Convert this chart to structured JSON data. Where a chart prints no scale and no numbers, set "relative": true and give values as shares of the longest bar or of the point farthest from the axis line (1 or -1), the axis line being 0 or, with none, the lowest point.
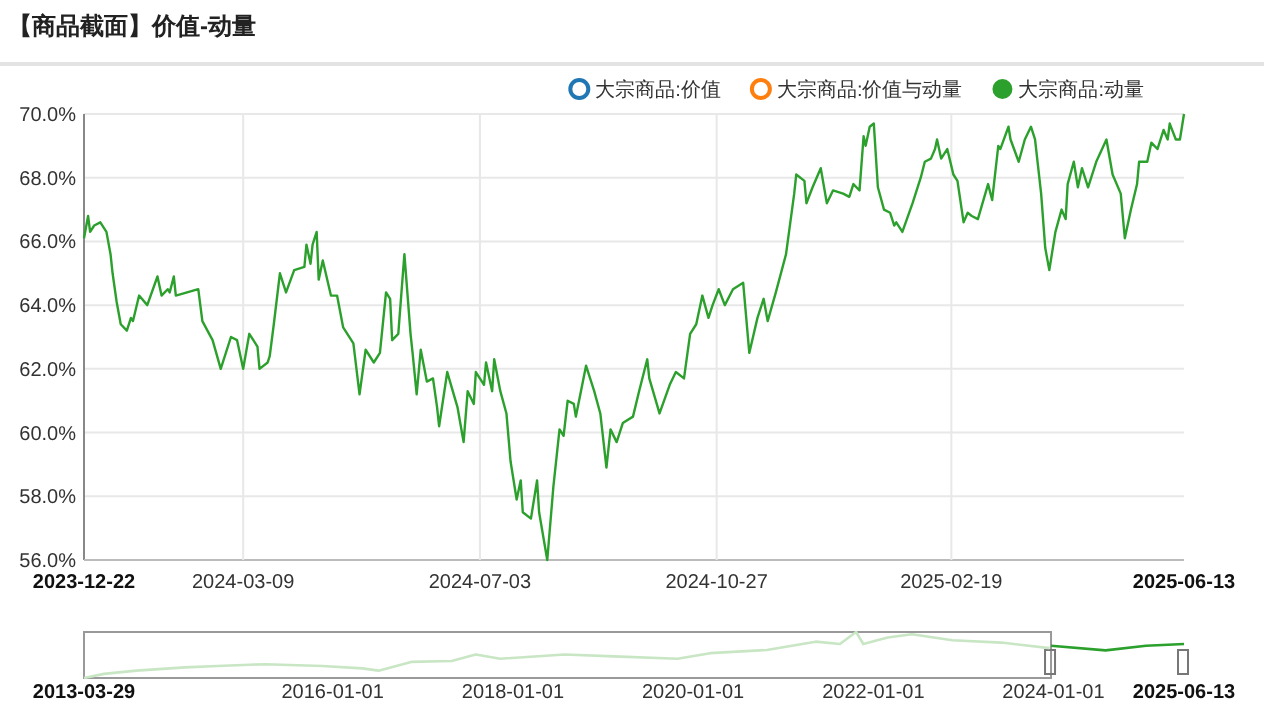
{
  "chart_data": [
    {
      "type": "line",
      "title": "【商品截面】价值-动量",
      "xlim": [
        "2023-12-22",
        "2025-06-13"
      ],
      "xticks": [
        {
          "value": "2023-12-22",
          "label": "2023-12-22"
        },
        {
          "value": "2024-03-09",
          "label": "2024-03-09"
        },
        {
          "value": "2024-07-03",
          "label": "2024-07-03"
        },
        {
          "value": "2024-10-27",
          "label": "2024-10-27"
        },
        {
          "value": "2025-02-19",
          "label": "2025-02-19"
        },
        {
          "value": "2025-06-13",
          "label": "2025-06-13"
        }
      ],
      "ylim": [
        56,
        70
      ],
      "yticks": [
        {
          "value": 56,
          "label": "56.0%"
        },
        {
          "value": 58,
          "label": "58.0%"
        },
        {
          "value": 60,
          "label": "60.0%"
        },
        {
          "value": 62,
          "label": "62.0%"
        },
        {
          "value": 64,
          "label": "64.0%"
        },
        {
          "value": 66,
          "label": "66.0%"
        },
        {
          "value": 68,
          "label": "68.0%"
        },
        {
          "value": 70,
          "label": "70.0%"
        }
      ],
      "grid": true,
      "legend": "top right",
      "series": [
        {
          "name": "大宗商品:价值",
          "color": "#1f77b4"
        },
        {
          "name": "大宗商品:价值与动量",
          "color": "#ff7f0e"
        },
        {
          "name": "大宗商品:动量",
          "color": "#2ca02c",
          "x": [
            "2023-12-22",
            "2023-12-24",
            "2023-12-25",
            "2023-12-27",
            "2023-12-30",
            "2024-01-02",
            "2024-01-04",
            "2024-01-05",
            "2024-01-07",
            "2024-01-09",
            "2024-01-12",
            "2024-01-14",
            "2024-01-15",
            "2024-01-18",
            "2024-01-22",
            "2024-01-27",
            "2024-01-29",
            "2024-02-01",
            "2024-02-02",
            "2024-02-04",
            "2024-02-05",
            "2024-02-16",
            "2024-02-18",
            "2024-02-23",
            "2024-02-27",
            "2024-03-03",
            "2024-03-06",
            "2024-03-09",
            "2024-03-12",
            "2024-03-16",
            "2024-03-17",
            "2024-03-21",
            "2024-03-22",
            "2024-03-24",
            "2024-03-27",
            "2024-03-30",
            "2024-04-03",
            "2024-04-08",
            "2024-04-09",
            "2024-04-11",
            "2024-04-12",
            "2024-04-14",
            "2024-04-15",
            "2024-04-17",
            "2024-04-21",
            "2024-04-24",
            "2024-04-27",
            "2024-05-02",
            "2024-05-05",
            "2024-05-08",
            "2024-05-12",
            "2024-05-15",
            "2024-05-18",
            "2024-05-20",
            "2024-05-21",
            "2024-05-24",
            "2024-05-27",
            "2024-05-30",
            "2024-05-31",
            "2024-06-02",
            "2024-06-04",
            "2024-06-07",
            "2024-06-10",
            "2024-06-12",
            "2024-06-13",
            "2024-06-17",
            "2024-06-22",
            "2024-06-25",
            "2024-06-27",
            "2024-06-30",
            "2024-07-01",
            "2024-07-05",
            "2024-07-06",
            "2024-07-09",
            "2024-07-10",
            "2024-07-13",
            "2024-07-16",
            "2024-07-18",
            "2024-07-21",
            "2024-07-23",
            "2024-07-24",
            "2024-07-28",
            "2024-07-31",
            "2024-08-01",
            "2024-08-05",
            "2024-08-08",
            "2024-08-11",
            "2024-08-13",
            "2024-08-15",
            "2024-08-18",
            "2024-08-19",
            "2024-08-24",
            "2024-08-28",
            "2024-08-31",
            "2024-09-03",
            "2024-09-05",
            "2024-09-08",
            "2024-09-11",
            "2024-09-16",
            "2024-09-19",
            "2024-09-23",
            "2024-09-24",
            "2024-09-29",
            "2024-10-04",
            "2024-10-07",
            "2024-10-11",
            "2024-10-14",
            "2024-10-17",
            "2024-10-20",
            "2024-10-23",
            "2024-10-25",
            "2024-10-28",
            "2024-10-31",
            "2024-11-04",
            "2024-11-09",
            "2024-11-12",
            "2024-11-16",
            "2024-11-19",
            "2024-11-21",
            "2024-11-25",
            "2024-11-30",
            "2024-12-04",
            "2024-12-05",
            "2024-12-09",
            "2024-12-10",
            "2024-12-13",
            "2024-12-17",
            "2024-12-20",
            "2024-12-23",
            "2024-12-28",
            "2024-12-31",
            "2025-01-02",
            "2025-01-05",
            "2025-01-07",
            "2025-01-08",
            "2025-01-10",
            "2025-01-12",
            "2025-01-14",
            "2025-01-17",
            "2025-01-20",
            "2025-01-22",
            "2025-01-23",
            "2025-01-25",
            "2025-01-26",
            "2025-01-31",
            "2025-02-04",
            "2025-02-06",
            "2025-02-09",
            "2025-02-11",
            "2025-02-12",
            "2025-02-14",
            "2025-02-17",
            "2025-02-20",
            "2025-02-22",
            "2025-02-25",
            "2025-02-27",
            "2025-03-01",
            "2025-03-04",
            "2025-03-09",
            "2025-03-11",
            "2025-03-14",
            "2025-03-15",
            "2025-03-19",
            "2025-03-20",
            "2025-03-24",
            "2025-03-27",
            "2025-03-30",
            "2025-04-01",
            "2025-04-04",
            "2025-04-06",
            "2025-04-08",
            "2025-04-11",
            "2025-04-14",
            "2025-04-16",
            "2025-04-17",
            "2025-04-20",
            "2025-04-22",
            "2025-04-24",
            "2025-04-27",
            "2025-05-01",
            "2025-05-06",
            "2025-05-09",
            "2025-05-13",
            "2025-05-15",
            "2025-05-18",
            "2025-05-21",
            "2025-05-22",
            "2025-05-26",
            "2025-05-28",
            "2025-05-31",
            "2025-06-03",
            "2025-06-05",
            "2025-06-06",
            "2025-06-09",
            "2025-06-11",
            "2025-06-13"
          ],
          "values": [
            66.1,
            66.8,
            66.3,
            66.5,
            66.6,
            66.3,
            65.6,
            65.0,
            64.1,
            63.4,
            63.2,
            63.6,
            63.5,
            64.3,
            64.0,
            64.9,
            64.3,
            64.5,
            64.4,
            64.9,
            64.3,
            64.5,
            63.5,
            62.9,
            62.0,
            63.0,
            62.9,
            62.0,
            63.1,
            62.7,
            62.0,
            62.2,
            62.4,
            63.4,
            65.0,
            64.4,
            65.1,
            65.2,
            65.9,
            65.3,
            65.9,
            66.3,
            64.8,
            65.4,
            64.3,
            64.3,
            63.3,
            62.8,
            61.2,
            62.6,
            62.2,
            62.5,
            64.4,
            64.2,
            62.9,
            63.1,
            65.6,
            63.1,
            62.5,
            61.2,
            62.6,
            61.6,
            61.7,
            60.8,
            60.2,
            61.9,
            60.8,
            59.7,
            61.3,
            60.9,
            61.9,
            61.5,
            62.2,
            61.3,
            62.3,
            61.3,
            60.6,
            59.1,
            57.9,
            58.5,
            57.5,
            57.3,
            58.5,
            57.5,
            56.0,
            58.3,
            60.1,
            59.9,
            61.0,
            60.9,
            60.5,
            62.1,
            61.3,
            60.6,
            58.9,
            60.1,
            59.7,
            60.3,
            60.5,
            61.3,
            62.3,
            61.7,
            60.6,
            61.5,
            61.9,
            61.7,
            63.1,
            63.4,
            64.3,
            63.6,
            64.0,
            64.5,
            64.0,
            64.5,
            64.7,
            62.5,
            63.6,
            64.2,
            63.5,
            64.4,
            65.6,
            67.5,
            68.1,
            67.9,
            67.2,
            67.7,
            68.3,
            67.2,
            67.6,
            67.5,
            67.4,
            67.8,
            67.6,
            69.3,
            69.0,
            69.6,
            69.7,
            67.7,
            67.0,
            66.9,
            66.5,
            66.6,
            66.4,
            66.3,
            67.2,
            68.0,
            68.5,
            68.6,
            68.9,
            69.2,
            68.6,
            68.9,
            68.1,
            67.9,
            66.6,
            66.9,
            66.8,
            66.7,
            67.8,
            67.3,
            69.0,
            68.9,
            69.6,
            69.2,
            68.5,
            69.2,
            69.6,
            69.2,
            67.5,
            65.8,
            65.1,
            66.3,
            67.0,
            66.7,
            67.8,
            68.5,
            67.7,
            68.3,
            67.7,
            68.5,
            69.2,
            68.1,
            67.5,
            66.1,
            67.0,
            67.8,
            68.5,
            68.5,
            69.1,
            68.9,
            69.5,
            69.2,
            69.7,
            69.2,
            69.2,
            70.0
          ]
        }
      ]
    },
    {
      "type": "line",
      "relative": true,
      "xlim": [
        "2013-03-29",
        "2025-06-13"
      ],
      "xticks": [
        {
          "value": "2013-03-29",
          "label": "2013-03-29"
        },
        {
          "value": "2016-01-01",
          "label": "2016-01-01"
        },
        {
          "value": "2018-01-01",
          "label": "2018-01-01"
        },
        {
          "value": "2020-01-01",
          "label": "2020-01-01"
        },
        {
          "value": "2022-01-01",
          "label": "2022-01-01"
        },
        {
          "value": "2024-01-01",
          "label": "2024-01-01"
        },
        {
          "value": "2025-06-13",
          "label": "2025-06-13"
        }
      ],
      "series": [
        {
          "color": "#c8e6c4",
          "x": [
            "2013-03-29",
            "2013-06-18",
            "2013-10-27",
            "2014-05-12",
            "2014-09-20",
            "2015-04-05",
            "2015-11-20",
            "2016-05-01",
            "2016-07-05",
            "2016-11-14",
            "2017-04-27",
            "2017-08-03",
            "2017-11-10",
            "2018-07-30",
            "2019-02-14",
            "2019-10-30",
            "2020-03-10",
            "2020-10-26",
            "2021-05-12",
            "2021-08-18",
            "2021-10-23",
            "2021-11-21",
            "2022-02-28",
            "2022-06-06",
            "2022-11-17",
            "2023-06-03",
            "2023-12-16"
          ],
          "values": [
            0,
            0.09,
            0.16,
            0.23,
            0.26,
            0.3,
            0.26,
            0.21,
            0.16,
            0.35,
            0.37,
            0.51,
            0.42,
            0.51,
            0.47,
            0.42,
            0.54,
            0.61,
            0.79,
            0.74,
            1.0,
            0.74,
            0.88,
            0.95,
            0.82,
            0.77,
            0.65
          ]
        },
        {
          "color": "#2ca02c",
          "x": [
            "2023-12-22",
            "2024-07-30",
            "2025-01-10",
            "2025-06-13"
          ],
          "values": [
            0.7,
            0.6,
            0.7,
            0.74
          ]
        }
      ]
    }
  ]
}
